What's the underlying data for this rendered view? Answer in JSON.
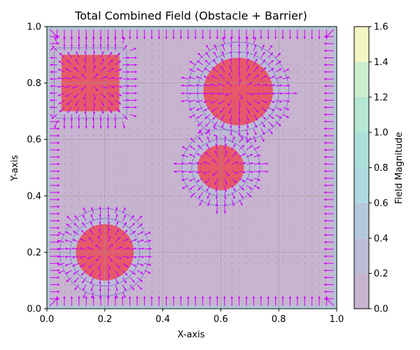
{
  "chart_data": {
    "type": "heatmap",
    "title": "Total Combined Field (Obstacle + Barrier)",
    "xlabel": "X-axis",
    "ylabel": "Y-axis",
    "xlim": [
      0,
      1
    ],
    "ylim": [
      0,
      1
    ],
    "x_ticks": [
      "0.0",
      "0.2",
      "0.4",
      "0.6",
      "0.8",
      "1.0"
    ],
    "y_ticks": [
      "0.0",
      "0.2",
      "0.4",
      "0.6",
      "0.8",
      "1.0"
    ],
    "grid": true,
    "colorbar": {
      "label": "Field Magnitude",
      "ticks": [
        "0.0",
        "0.2",
        "0.4",
        "0.6",
        "0.8",
        "1.0",
        "1.2",
        "1.4",
        "1.6"
      ],
      "levels": [
        0,
        0.2,
        0.4,
        0.6,
        0.8,
        1.0,
        1.2,
        1.4,
        1.6
      ],
      "colors": [
        "#c7b4cf",
        "#bcbcd6",
        "#b4c8dc",
        "#addae0",
        "#abe0da",
        "#b5e7d2",
        "#cdeecc",
        "#f3f6c4"
      ]
    },
    "obstacles": [
      {
        "shape": "rect",
        "x0": 0.05,
        "y0": 0.7,
        "x1": 0.25,
        "y1": 0.9
      },
      {
        "shape": "circle",
        "cx": 0.66,
        "cy": 0.77,
        "r": 0.12
      },
      {
        "shape": "circle",
        "cx": 0.6,
        "cy": 0.5,
        "r": 0.08
      },
      {
        "shape": "circle",
        "cx": 0.2,
        "cy": 0.2,
        "r": 0.1
      }
    ],
    "obstacle_color": "#e8505f",
    "quiver_color": "#cc00ff",
    "contour_color": "#7b6fd0"
  }
}
